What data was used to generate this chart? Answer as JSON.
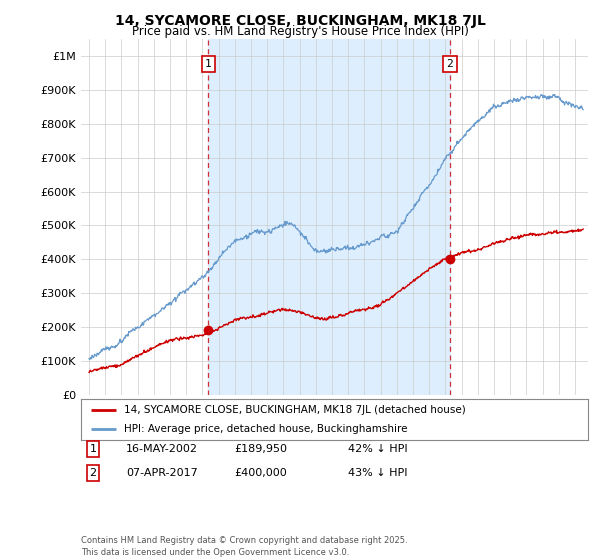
{
  "title": "14, SYCAMORE CLOSE, BUCKINGHAM, MK18 7JL",
  "subtitle": "Price paid vs. HM Land Registry's House Price Index (HPI)",
  "legend_line1": "14, SYCAMORE CLOSE, BUCKINGHAM, MK18 7JL (detached house)",
  "legend_line2": "HPI: Average price, detached house, Buckinghamshire",
  "annotation1_date": "16-MAY-2002",
  "annotation1_price": "£189,950",
  "annotation1_hpi": "42% ↓ HPI",
  "annotation1_year": 2002.37,
  "annotation1_value": 189950,
  "annotation2_date": "07-APR-2017",
  "annotation2_price": "£400,000",
  "annotation2_hpi": "43% ↓ HPI",
  "annotation2_year": 2017.27,
  "annotation2_value": 400000,
  "sale_color": "#cc0000",
  "hpi_color": "#6699cc",
  "shade_color": "#ddeeff",
  "background_color": "#ffffff",
  "grid_color": "#cccccc",
  "footer": "Contains HM Land Registry data © Crown copyright and database right 2025.\nThis data is licensed under the Open Government Licence v3.0.",
  "ylim": [
    0,
    1050000
  ],
  "yticks": [
    0,
    100000,
    200000,
    300000,
    400000,
    500000,
    600000,
    700000,
    800000,
    900000,
    1000000
  ],
  "xlim_start": 1994.5,
  "xlim_end": 2025.8
}
